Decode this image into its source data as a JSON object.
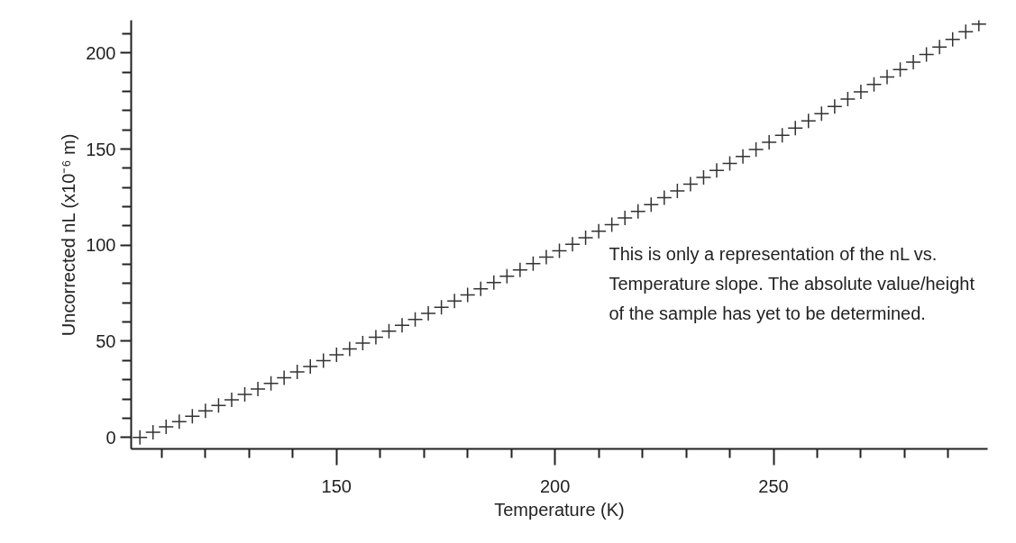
{
  "chart_data": {
    "type": "scatter",
    "xlabel": "Temperature (K)",
    "ylabel": "Uncorrected nL (x10⁻⁶ m)",
    "annotations": [
      "This is only a representation of the nL vs.\nTemperature slope.  The absolute value/height\nof the sample has yet to be determined."
    ],
    "x": [
      105,
      108,
      111,
      114,
      117,
      120,
      123,
      126,
      129,
      132,
      135,
      138,
      141,
      144,
      147,
      150,
      153,
      156,
      159,
      162,
      165,
      168,
      171,
      174,
      177,
      180,
      183,
      186,
      189,
      192,
      195,
      198,
      201,
      204,
      207,
      210,
      213,
      216,
      219,
      222,
      225,
      228,
      231,
      234,
      237,
      240,
      243,
      246,
      249,
      252,
      255,
      258,
      261,
      264,
      267,
      270,
      273,
      276,
      279,
      282,
      285,
      288,
      291,
      294,
      297
    ],
    "series": [
      {
        "color": "#333333",
        "values": [
          0,
          2.7,
          5.5,
          8.2,
          11.0,
          13.8,
          16.6,
          19.5,
          22.3,
          25.2,
          28.1,
          31.0,
          34.0,
          36.9,
          39.9,
          42.9,
          46.0,
          49.0,
          52.1,
          55.2,
          58.3,
          61.4,
          64.5,
          67.7,
          70.9,
          74.1,
          77.3,
          80.6,
          83.8,
          87.1,
          90.4,
          93.8,
          97.1,
          100.5,
          103.9,
          107.3,
          110.7,
          114.2,
          117.6,
          121.1,
          124.7,
          128.2,
          131.7,
          135.3,
          138.9,
          142.5,
          146.1,
          149.8,
          153.5,
          157.2,
          160.9,
          164.6,
          168.4,
          172.2,
          176.0,
          179.8,
          183.6,
          187.5,
          191.3,
          195.2,
          199.2,
          203.1,
          207.0,
          211.0,
          215.0
        ]
      }
    ],
    "marker": "cross",
    "xlim": [
      103,
      299
    ],
    "ylim": [
      -6,
      217
    ],
    "xticks": [
      {
        "value": 110,
        "label": null
      },
      {
        "value": 120,
        "label": null
      },
      {
        "value": 130,
        "label": null
      },
      {
        "value": 140,
        "label": null
      },
      150,
      {
        "value": 160,
        "label": null
      },
      {
        "value": 170,
        "label": null
      },
      {
        "value": 180,
        "label": null
      },
      {
        "value": 190,
        "label": null
      },
      200,
      {
        "value": 210,
        "label": null
      },
      {
        "value": 220,
        "label": null
      },
      {
        "value": 230,
        "label": null
      },
      {
        "value": 240,
        "label": null
      },
      250,
      {
        "value": 260,
        "label": null
      },
      {
        "value": 270,
        "label": null
      },
      {
        "value": 280,
        "label": null
      },
      {
        "value": 290,
        "label": null
      }
    ],
    "yticks": [
      0,
      {
        "value": 10,
        "label": null
      },
      {
        "value": 20,
        "label": null
      },
      {
        "value": 30,
        "label": null
      },
      {
        "value": 40,
        "label": null
      },
      50,
      {
        "value": 60,
        "label": null
      },
      {
        "value": 70,
        "label": null
      },
      {
        "value": 80,
        "label": null
      },
      {
        "value": 90,
        "label": null
      },
      100,
      {
        "value": 110,
        "label": null
      },
      {
        "value": 120,
        "label": null
      },
      {
        "value": 130,
        "label": null
      },
      {
        "value": 140,
        "label": null
      },
      150,
      {
        "value": 160,
        "label": null
      },
      {
        "value": 170,
        "label": null
      },
      {
        "value": 180,
        "label": null
      },
      {
        "value": 190,
        "label": null
      },
      200,
      {
        "value": 210,
        "label": null
      }
    ]
  }
}
